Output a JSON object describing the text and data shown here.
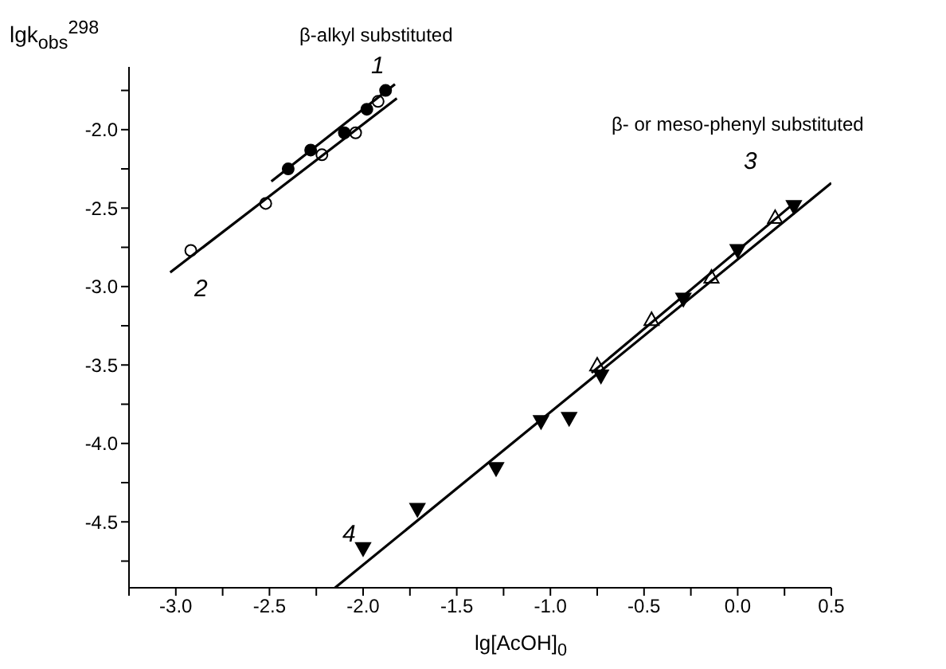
{
  "chart_data": {
    "type": "scatter",
    "xlabel": "lg[AcOH]$_{0}$",
    "ylabel": "lgk$_{obs}$$^{298}$",
    "annotations": [
      "β-alkyl substituted",
      "β- or meso-phenyl substituted",
      "1",
      "2",
      "3",
      "4"
    ],
    "series": [
      {
        "marker": "circle",
        "color": "#000000",
        "x": [
          -2.4,
          -2.28,
          -2.1,
          -1.98,
          -1.88
        ],
        "values": [
          -2.25,
          -2.13,
          -2.02,
          -1.87,
          -1.75
        ]
      },
      {
        "marker": "circle",
        "color": "#ffffff",
        "x": [
          -2.92,
          -2.52,
          -2.22,
          -2.04,
          -1.92
        ],
        "values": [
          -2.77,
          -2.47,
          -2.16,
          -2.02,
          -1.82
        ]
      },
      {
        "marker": "triangle",
        "color": "#ffffff",
        "x": [
          -0.75,
          -0.46,
          -0.14,
          0.2
        ],
        "values": [
          -3.5,
          -3.21,
          -2.94,
          -2.56
        ]
      },
      {
        "marker": "triangle-down",
        "color": "#000000",
        "x": [
          -2.0,
          -1.71,
          -1.29,
          -1.05,
          -0.9,
          -0.73,
          -0.29,
          0.0,
          0.3
        ],
        "values": [
          -4.67,
          -4.42,
          -4.16,
          -3.86,
          -3.84,
          -3.57,
          -3.08,
          -2.77,
          -2.49
        ]
      },
      {
        "type": "line",
        "color": "#000000",
        "x": [
          -2.49,
          -1.83
        ],
        "values": [
          -2.33,
          -1.71
        ]
      },
      {
        "type": "line",
        "color": "#000000",
        "x": [
          -3.03,
          -1.82
        ],
        "values": [
          -2.91,
          -1.8
        ]
      },
      {
        "type": "line",
        "color": "#000000",
        "x": [
          -0.78,
          0.3
        ],
        "values": [
          -3.55,
          -2.47
        ]
      },
      {
        "type": "line",
        "color": "#000000",
        "x": [
          -2.15,
          0.5
        ],
        "values": [
          -4.92,
          -2.34
        ]
      }
    ],
    "xlim": [
      -3.25,
      0.5
    ],
    "xticks": [
      {
        "value": -3.25,
        "label": null
      },
      {
        "value": -3,
        "label": "-3.0"
      },
      {
        "value": -2.75,
        "label": null
      },
      {
        "value": -2.5,
        "label": "-2.5"
      },
      {
        "value": -2.25,
        "label": null
      },
      {
        "value": -2,
        "label": "-2.0"
      },
      {
        "value": -1.75,
        "label": null
      },
      {
        "value": -1.5,
        "label": "-1.5"
      },
      {
        "value": -1.25,
        "label": null
      },
      {
        "value": -1,
        "label": "-1.0"
      },
      {
        "value": -0.75,
        "label": null
      },
      {
        "value": -0.5,
        "label": "-0.5"
      },
      {
        "value": -0.25,
        "label": null
      },
      {
        "value": 0,
        "label": "0.0"
      },
      {
        "value": 0.25,
        "label": null
      },
      0.5
    ],
    "ylim": [
      -4.92,
      -1.6
    ],
    "yticks": [
      {
        "value": -1.75,
        "label": null
      },
      {
        "value": -2,
        "label": "-2.0"
      },
      {
        "value": -2.25,
        "label": null
      },
      {
        "value": -2.5,
        "label": "-2.5"
      },
      {
        "value": -2.75,
        "label": null
      },
      {
        "value": -3,
        "label": "-3.0"
      },
      {
        "value": -3.25,
        "label": null
      },
      {
        "value": -3.5,
        "label": "-3.5"
      },
      {
        "value": -3.75,
        "label": null
      },
      {
        "value": -4,
        "label": "-4.0"
      },
      {
        "value": -4.25,
        "label": null
      },
      -4.5,
      {
        "value": -4.75,
        "label": null
      }
    ]
  }
}
